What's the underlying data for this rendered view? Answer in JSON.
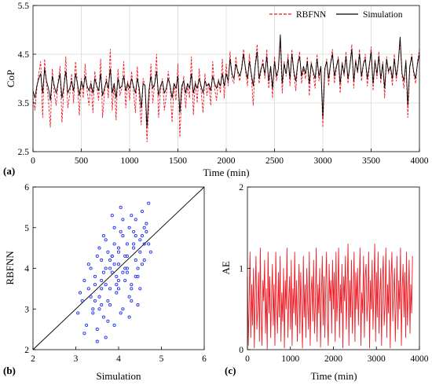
{
  "chart_data": [
    {
      "panel_label": "(a)",
      "type": "line",
      "title": "",
      "xlabel": "Time (min)",
      "ylabel": "CoP",
      "xlim": [
        0,
        4000
      ],
      "ylim": [
        2.5,
        5.5
      ],
      "xticks": [
        "0",
        "500",
        "1000",
        "1500",
        "2000",
        "2500",
        "3000",
        "3500",
        "4000"
      ],
      "yticks": [
        "2.5",
        "3.5",
        "4.5",
        "5.5"
      ],
      "grid": true,
      "legend": "top-right",
      "x_start": 0,
      "x_step": 20,
      "series": [
        {
          "name": "RBFNN",
          "color": "#ee1c25",
          "dash": "dashed",
          "values": [
            3.6,
            3.35,
            3.8,
            4.1,
            4.35,
            3.2,
            4.4,
            3.9,
            3.55,
            3.0,
            4.2,
            3.7,
            3.45,
            3.95,
            4.25,
            3.1,
            3.8,
            4.45,
            3.4,
            3.65,
            4.1,
            3.5,
            4.35,
            3.9,
            3.25,
            4.0,
            3.6,
            4.3,
            3.75,
            3.45,
            3.95,
            3.3,
            4.15,
            3.85,
            3.55,
            4.4,
            3.2,
            3.7,
            4.05,
            3.6,
            4.6,
            3.35,
            3.9,
            3.15,
            4.2,
            3.65,
            3.8,
            4.35,
            3.4,
            3.95,
            3.55,
            4.15,
            3.75,
            3.3,
            4.25,
            3.6,
            3.05,
            4.0,
            3.85,
            2.7,
            3.45,
            4.3,
            3.5,
            3.9,
            4.5,
            3.2,
            3.75,
            4.0,
            3.35,
            3.65,
            4.15,
            3.8,
            3.1,
            3.9,
            3.55,
            4.3,
            2.8,
            3.7,
            4.05,
            3.4,
            3.85,
            3.6,
            4.45,
            3.25,
            3.95,
            3.5,
            4.2,
            3.75,
            3.3,
            4.1,
            3.65,
            3.9,
            3.45,
            4.35,
            3.8,
            3.55,
            4.0,
            3.7,
            4.4,
            3.6,
            4.3,
            3.85,
            4.55,
            4.0,
            3.9,
            4.45,
            4.1,
            3.95,
            4.25,
            4.6,
            4.15,
            3.85,
            4.5,
            4.05,
            3.45,
            4.3,
            4.7,
            3.9,
            4.15,
            4.4,
            4.0,
            4.6,
            3.8,
            4.25,
            3.6,
            4.45,
            3.95,
            4.2,
            4.75,
            3.7,
            4.35,
            4.05,
            4.5,
            3.85,
            4.6,
            4.1,
            3.75,
            4.3,
            4.55,
            3.9,
            4.2,
            4.0,
            4.45,
            3.65,
            4.35,
            4.1,
            3.8,
            4.5,
            3.95,
            4.25,
            3.0,
            4.15,
            4.4,
            3.85,
            4.3,
            4.6,
            3.9,
            4.2,
            4.45,
            3.7,
            4.35,
            4.05,
            4.55,
            3.9,
            4.25,
            4.7,
            3.8,
            4.4,
            4.1,
            4.6,
            3.95,
            4.3,
            4.5,
            3.85,
            4.2,
            4.65,
            3.75,
            4.4,
            4.0,
            4.55,
            3.9,
            4.35,
            3.6,
            4.45,
            4.1,
            4.25,
            3.85,
            4.5,
            3.95,
            4.3,
            4.75,
            4.05,
            3.8,
            4.4,
            3.2,
            4.2,
            4.5,
            4.1,
            3.9,
            4.35,
            4.6
          ]
        },
        {
          "name": "Simulation",
          "color": "#000000",
          "dash": "solid",
          "values": [
            3.75,
            3.6,
            3.85,
            4.0,
            4.1,
            3.7,
            4.2,
            3.95,
            3.8,
            3.55,
            4.05,
            3.85,
            3.7,
            3.9,
            4.1,
            3.6,
            3.85,
            4.15,
            3.7,
            3.8,
            3.95,
            3.75,
            4.1,
            3.9,
            3.65,
            3.95,
            3.8,
            4.05,
            3.85,
            3.75,
            3.9,
            3.7,
            4.0,
            3.85,
            3.75,
            4.1,
            3.65,
            3.8,
            3.95,
            3.8,
            4.2,
            3.7,
            3.9,
            3.6,
            4.0,
            3.8,
            3.85,
            4.05,
            3.75,
            3.9,
            3.8,
            4.0,
            3.85,
            3.7,
            4.0,
            3.8,
            3.4,
            3.9,
            3.85,
            3.0,
            3.75,
            4.05,
            3.8,
            3.9,
            4.15,
            3.65,
            3.85,
            3.95,
            3.7,
            3.8,
            4.0,
            3.85,
            3.6,
            3.9,
            3.8,
            4.05,
            3.3,
            3.85,
            3.95,
            3.7,
            3.9,
            3.8,
            4.1,
            3.7,
            3.9,
            3.8,
            4.0,
            3.85,
            3.7,
            3.95,
            3.85,
            3.9,
            3.75,
            4.05,
            3.9,
            3.8,
            3.95,
            3.85,
            4.1,
            3.85,
            4.1,
            3.95,
            4.4,
            4.1,
            4.0,
            4.3,
            4.15,
            4.05,
            4.2,
            4.5,
            4.2,
            4.0,
            4.35,
            4.1,
            3.85,
            4.25,
            4.55,
            4.0,
            4.2,
            4.3,
            4.1,
            4.45,
            3.95,
            4.25,
            3.8,
            4.35,
            4.05,
            4.2,
            4.9,
            3.9,
            4.3,
            4.1,
            4.4,
            4.0,
            4.5,
            4.15,
            3.95,
            4.3,
            4.45,
            4.05,
            4.25,
            4.1,
            4.35,
            3.9,
            4.3,
            4.15,
            4.0,
            4.4,
            4.05,
            4.25,
            3.2,
            4.2,
            4.35,
            4.0,
            4.3,
            4.5,
            4.05,
            4.25,
            4.4,
            3.9,
            4.3,
            4.1,
            4.45,
            4.0,
            4.25,
            4.6,
            3.95,
            4.35,
            4.15,
            4.5,
            4.05,
            4.3,
            4.4,
            4.0,
            4.25,
            4.55,
            3.9,
            4.35,
            4.1,
            4.45,
            4.0,
            4.3,
            3.8,
            4.4,
            4.15,
            4.25,
            4.0,
            4.4,
            4.05,
            4.3,
            4.85,
            4.1,
            3.95,
            4.35,
            3.45,
            4.25,
            4.45,
            4.15,
            4.0,
            4.3,
            4.5
          ]
        }
      ]
    },
    {
      "panel_label": "(b)",
      "type": "scatter",
      "title": "",
      "xlabel": "Simulation",
      "ylabel": "RBFNN",
      "xlim": [
        2,
        6
      ],
      "ylim": [
        2,
        6
      ],
      "xticks": [
        "2",
        "3",
        "4",
        "5",
        "6"
      ],
      "yticks": [
        "2",
        "3",
        "4",
        "5",
        "6"
      ],
      "grid": false,
      "marker_color": "#1f2ff0",
      "reference_line": "y = x",
      "points": {
        "x": [
          3.05,
          3.15,
          3.25,
          3.3,
          3.4,
          3.45,
          3.5,
          3.55,
          3.6,
          3.65,
          3.7,
          3.75,
          3.8,
          3.85,
          3.9,
          3.95,
          4.0,
          4.05,
          4.1,
          4.15,
          4.2,
          4.25,
          4.3,
          4.35,
          4.4,
          4.45,
          4.5,
          4.55,
          4.6,
          4.65,
          4.7,
          4.75,
          3.1,
          3.2,
          3.35,
          3.45,
          3.55,
          3.65,
          3.75,
          3.85,
          3.95,
          4.05,
          4.15,
          4.25,
          4.35,
          4.45,
          4.55,
          4.65,
          3.2,
          3.4,
          3.6,
          3.8,
          4.0,
          4.2,
          4.4,
          4.6,
          3.3,
          3.5,
          3.7,
          3.9,
          4.1,
          4.3,
          4.5,
          3.6,
          3.8,
          4.0,
          4.2,
          4.4,
          3.7,
          3.9,
          4.1,
          4.3,
          3.5,
          3.65,
          3.85,
          4.05,
          4.25,
          4.45,
          3.75,
          3.95,
          4.15,
          4.35,
          4.55,
          3.45,
          3.6,
          3.8,
          4.0,
          4.2,
          4.4,
          4.6,
          3.9,
          4.1,
          3.7,
          4.3,
          3.55,
          4.5,
          3.35,
          4.7,
          4.0,
          3.85
        ],
        "y": [
          2.9,
          3.2,
          2.6,
          3.5,
          3.0,
          3.8,
          2.5,
          3.3,
          4.2,
          2.8,
          3.6,
          4.4,
          3.1,
          3.9,
          4.6,
          3.4,
          4.1,
          2.9,
          4.8,
          3.7,
          4.3,
          5.0,
          3.5,
          4.5,
          5.2,
          4.0,
          4.7,
          5.4,
          4.2,
          4.9,
          5.6,
          4.4,
          3.4,
          3.7,
          4.0,
          3.2,
          4.5,
          3.9,
          2.7,
          4.3,
          3.6,
          4.9,
          4.0,
          3.3,
          4.6,
          3.8,
          4.8,
          5.1,
          2.4,
          2.9,
          3.1,
          3.5,
          3.7,
          3.9,
          4.2,
          4.6,
          4.1,
          4.3,
          4.7,
          5.0,
          5.2,
          5.3,
          3.5,
          3.5,
          4.0,
          4.4,
          4.6,
          3.8,
          2.3,
          2.6,
          3.0,
          3.2,
          2.2,
          4.8,
          5.3,
          5.5,
          2.8,
          3.1,
          3.2,
          3.8,
          4.3,
          4.9,
          4.1,
          3.6,
          3.7,
          4.2,
          4.5,
          4.0,
          4.8,
          5.0,
          4.1,
          3.9,
          4.0,
          3.6,
          3.0,
          4.4,
          3.3,
          4.6,
          3.5,
          4.3
        ]
      }
    },
    {
      "panel_label": "(c)",
      "type": "line",
      "title": "",
      "xlabel": "Time (min)",
      "ylabel": "AE",
      "xlim": [
        0,
        4000
      ],
      "ylim": [
        0,
        2
      ],
      "xticks": [
        "0",
        "1000",
        "2000",
        "3000",
        "4000"
      ],
      "yticks": [
        "0",
        "1",
        "2"
      ],
      "grid": false,
      "x_start": 0,
      "x_step": 20,
      "series": [
        {
          "name": "",
          "color": "#ee1c25",
          "dash": "solid",
          "values": [
            0.9,
            0.05,
            0.6,
            1.2,
            0.15,
            0.8,
            0.3,
            1.0,
            0.02,
            0.7,
            1.15,
            0.25,
            0.5,
            0.95,
            0.1,
            1.25,
            0.4,
            0.05,
            0.85,
            0.6,
            1.1,
            0.2,
            0.75,
            0.01,
            1.2,
            0.45,
            0.9,
            0.15,
            0.65,
            1.05,
            0.3,
            0.8,
            0.05,
            1.2,
            0.55,
            0.2,
            0.95,
            0.4,
            1.15,
            0.1,
            0.7,
            0.35,
            1.0,
            0.02,
            0.85,
            0.5,
            1.25,
            0.15,
            0.6,
            0.9,
            0.25,
            1.1,
            0.05,
            0.75,
            0.45,
            1.2,
            0.3,
            0.85,
            0.1,
            0.65,
            1.05,
            0.2,
            0.95,
            0.5,
            0.02,
            1.15,
            0.4,
            0.8,
            0.15,
            1.0,
            0.6,
            0.25,
            1.2,
            0.05,
            0.7,
            0.9,
            0.35,
            1.1,
            0.2,
            0.55,
            1.25,
            0.1,
            0.8,
            0.45,
            1.0,
            0.03,
            0.65,
            1.15,
            0.3,
            0.9,
            0.15,
            0.75,
            1.2,
            0.4,
            0.05,
            1.05,
            0.6,
            0.85,
            0.2,
            1.1,
            0.5,
            0.95,
            0.1,
            1.2,
            0.35,
            0.7,
            1.25,
            0.15,
            0.8,
            0.45,
            1.05,
            0.02,
            0.9,
            0.6,
            1.15,
            0.25,
            0.75,
            1.3,
            0.05,
            0.85,
            0.4,
            1.1,
            0.2,
            0.65,
            1.2,
            0.1,
            0.95,
            0.5,
            1.0,
            0.3,
            0.8,
            1.25,
            0.05,
            0.7,
            0.45,
            1.15,
            0.15,
            0.9,
            1.05,
            0.35,
            0.6,
            1.2,
            0.02,
            0.85,
            0.5,
            1.1,
            0.25,
            0.75,
            1.3,
            0.1,
            0.95,
            0.4,
            1.2,
            0.2,
            0.65,
            1.0,
            0.05,
            0.85,
            1.15,
            0.3,
            0.55,
            1.25,
            0.15,
            0.8,
            0.45,
            1.1,
            0.02,
            0.9,
            1.2,
            0.35,
            0.7,
            1.0,
            0.1,
            0.6,
            1.15,
            0.25,
            0.85,
            0.5,
            1.25,
            0.05,
            0.75,
            1.05,
            0.4,
            0.95,
            0.15,
            1.2,
            0.3,
            0.65,
            1.1,
            0.2,
            0.8,
            0.45,
            1.15
          ]
        }
      ]
    }
  ]
}
